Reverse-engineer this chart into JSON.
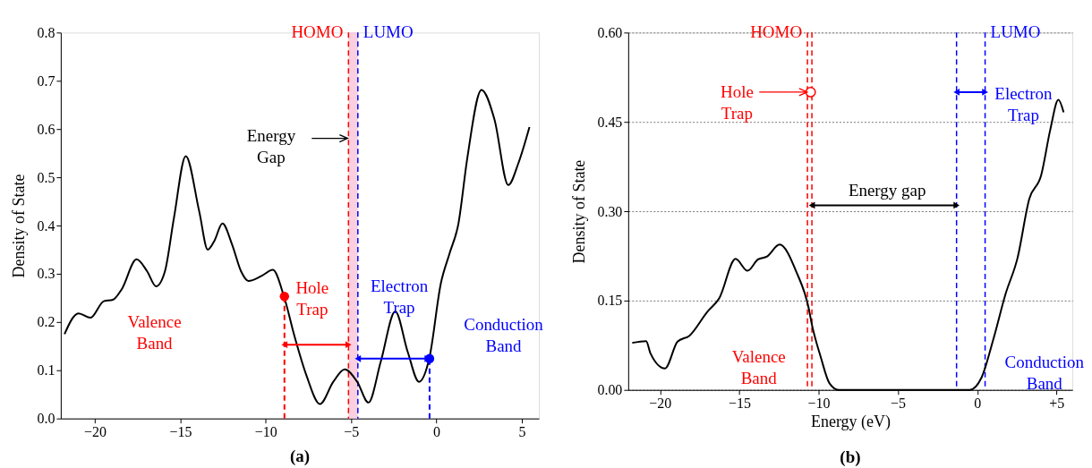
{
  "chart_data": [
    {
      "type": "line",
      "ylabel": "Density of State",
      "xlim": [
        -22,
        6
      ],
      "ylim": [
        0,
        0.8
      ],
      "xticks": [
        -20,
        -15,
        -10,
        -5,
        0,
        5
      ],
      "yticks": [
        {
          "value": 0,
          "label": "0.0"
        },
        0.1,
        0.2,
        0.3,
        0.4,
        0.5,
        0.6,
        0.7,
        0.8
      ],
      "grid": false,
      "series": [
        {
          "color": "#000000",
          "x": [
            -21.78,
            -20.96,
            -20.26,
            -19.48,
            -18.95,
            -18.43,
            -17.56,
            -16.94,
            -16.42,
            -15.9,
            -15.37,
            -14.68,
            -13.89,
            -13.39,
            -13.02,
            -12.53,
            -11.97,
            -11.44,
            -11.01,
            -10.22,
            -9.58,
            -8.92,
            -8.3,
            -7.61,
            -6.82,
            -6.04,
            -5.37,
            -4.64,
            -3.98,
            -3.25,
            -2.41,
            -1.68,
            -1.02,
            -0.42,
            0.26,
            0.77,
            1.29,
            1.81,
            2.64,
            3.4,
            4.21,
            4.79,
            5.45
          ],
          "values": [
            0.175,
            0.218,
            0.209,
            0.243,
            0.246,
            0.268,
            0.33,
            0.305,
            0.274,
            0.305,
            0.416,
            0.544,
            0.429,
            0.35,
            0.367,
            0.404,
            0.361,
            0.305,
            0.285,
            0.296,
            0.308,
            0.252,
            0.169,
            0.089,
            0.03,
            0.076,
            0.102,
            0.076,
            0.033,
            0.119,
            0.222,
            0.138,
            0.076,
            0.124,
            0.28,
            0.342,
            0.404,
            0.54,
            0.681,
            0.62,
            0.484,
            0.528,
            0.604
          ]
        },
        {
          "color": "#ff0000",
          "line_style": "dashed",
          "x": [
            -8.9,
            -8.9
          ],
          "values": [
            0,
            0.253
          ]
        },
        {
          "color": "#0000ff",
          "line_style": "dashed",
          "x": [
            -0.4,
            -0.4
          ],
          "values": [
            0,
            0.124
          ]
        },
        {
          "color": "#ff0000",
          "marker": "triangle",
          "x": [
            -8.9,
            -5.15
          ],
          "values": [
            0.153,
            0.153
          ]
        },
        {
          "color": "#0000ff",
          "marker": "triangle",
          "x": [
            -4.6,
            -0.52
          ],
          "values": [
            0.124,
            0.124
          ]
        },
        {
          "type": "scatter",
          "color": "#ff0000",
          "marker": "circle",
          "x": [
            -8.9
          ],
          "values": [
            0.253
          ]
        },
        {
          "type": "scatter",
          "color": "#0000ff",
          "marker": "circle",
          "x": [
            -0.4
          ],
          "values": [
            0.124
          ]
        }
      ],
      "ref_lines": [
        {
          "axis": "x",
          "value": -5.15,
          "label": "HOMO",
          "color": "#ff0000",
          "line_style": "dashed"
        },
        {
          "axis": "x",
          "value": -4.6,
          "label": "LUMO",
          "color": "#0000ff",
          "line_style": "dashed"
        }
      ],
      "bands": [
        {
          "axis": "x",
          "from": -5.15,
          "to": -4.6,
          "color": "#f9c4d6"
        }
      ],
      "annotations": [
        "Valence\nBand",
        "Hole\nTrap",
        "Electron\nTrap",
        "Conduction\nBand",
        "Energy\nGap",
        "(a)"
      ]
    },
    {
      "type": "line",
      "xlabel": "Energy (eV)",
      "ylabel": "Density of State",
      "xlim": [
        -22,
        6
      ],
      "ylim": [
        0,
        0.6
      ],
      "xticks": [
        -20,
        -15,
        -10,
        -5,
        0,
        {
          "value": 5,
          "label": "+5"
        }
      ],
      "yticks": [
        {
          "value": 0,
          "label": "0.00"
        },
        0.15,
        {
          "value": 0.3,
          "label": "0.30"
        },
        0.45,
        {
          "value": 0.6,
          "label": "0.60"
        }
      ],
      "grid": "y",
      "series": [
        {
          "color": "#000000",
          "x": [
            -21.75,
            -20.87,
            -20.59,
            -19.68,
            -18.89,
            -18.14,
            -17.02,
            -16.26,
            -15.23,
            -14.48,
            -13.82,
            -13.25,
            -12.46,
            -11.38,
            -10.62,
            -10.43,
            -9.87,
            -9.31,
            -8.74,
            -0.47,
            0.28,
            1.03,
            1.79,
            2.54,
            3.29,
            4.04,
            4.61,
            5.12,
            5.45
          ],
          "values": [
            0.079,
            0.082,
            0.061,
            0.036,
            0.081,
            0.091,
            0.131,
            0.154,
            0.22,
            0.2,
            0.219,
            0.224,
            0.244,
            0.197,
            0.137,
            0.111,
            0.056,
            0.011,
            0,
            0,
            0.021,
            0.086,
            0.161,
            0.221,
            0.321,
            0.361,
            0.437,
            0.487,
            0.466
          ]
        },
        {
          "color": "#0000ff",
          "marker": "triangle",
          "x": [
            -1.3,
            0.5
          ],
          "values": [
            0.5,
            0.5
          ]
        },
        {
          "color": "#000000",
          "marker": "triangle",
          "x": [
            -10.42,
            -1.3
          ],
          "values": [
            0.31,
            0.31
          ]
        },
        {
          "type": "scatter",
          "color": "#ff0000",
          "marker": "circle",
          "x": [
            -10.5
          ],
          "values": [
            0.5
          ]
        }
      ],
      "ref_lines": [
        {
          "axis": "x",
          "value": -10.7,
          "label": "HOMO",
          "color": "#ff0000",
          "line_style": "dashed"
        },
        {
          "axis": "x",
          "value": -10.42,
          "label": null,
          "color": "#ff0000",
          "line_style": "dashed"
        },
        {
          "axis": "x",
          "value": -1.3,
          "label": null,
          "color": "#0000ff",
          "line_style": "dashed"
        },
        {
          "axis": "x",
          "value": 0.5,
          "label": "LUMO",
          "color": "#0000ff",
          "line_style": "dashed"
        }
      ],
      "annotations": [
        "Valence\nBand",
        "Hole\nTrap",
        "Energy gap",
        "Electron\nTrap",
        "Conduction\nBand",
        "(b)"
      ]
    }
  ]
}
